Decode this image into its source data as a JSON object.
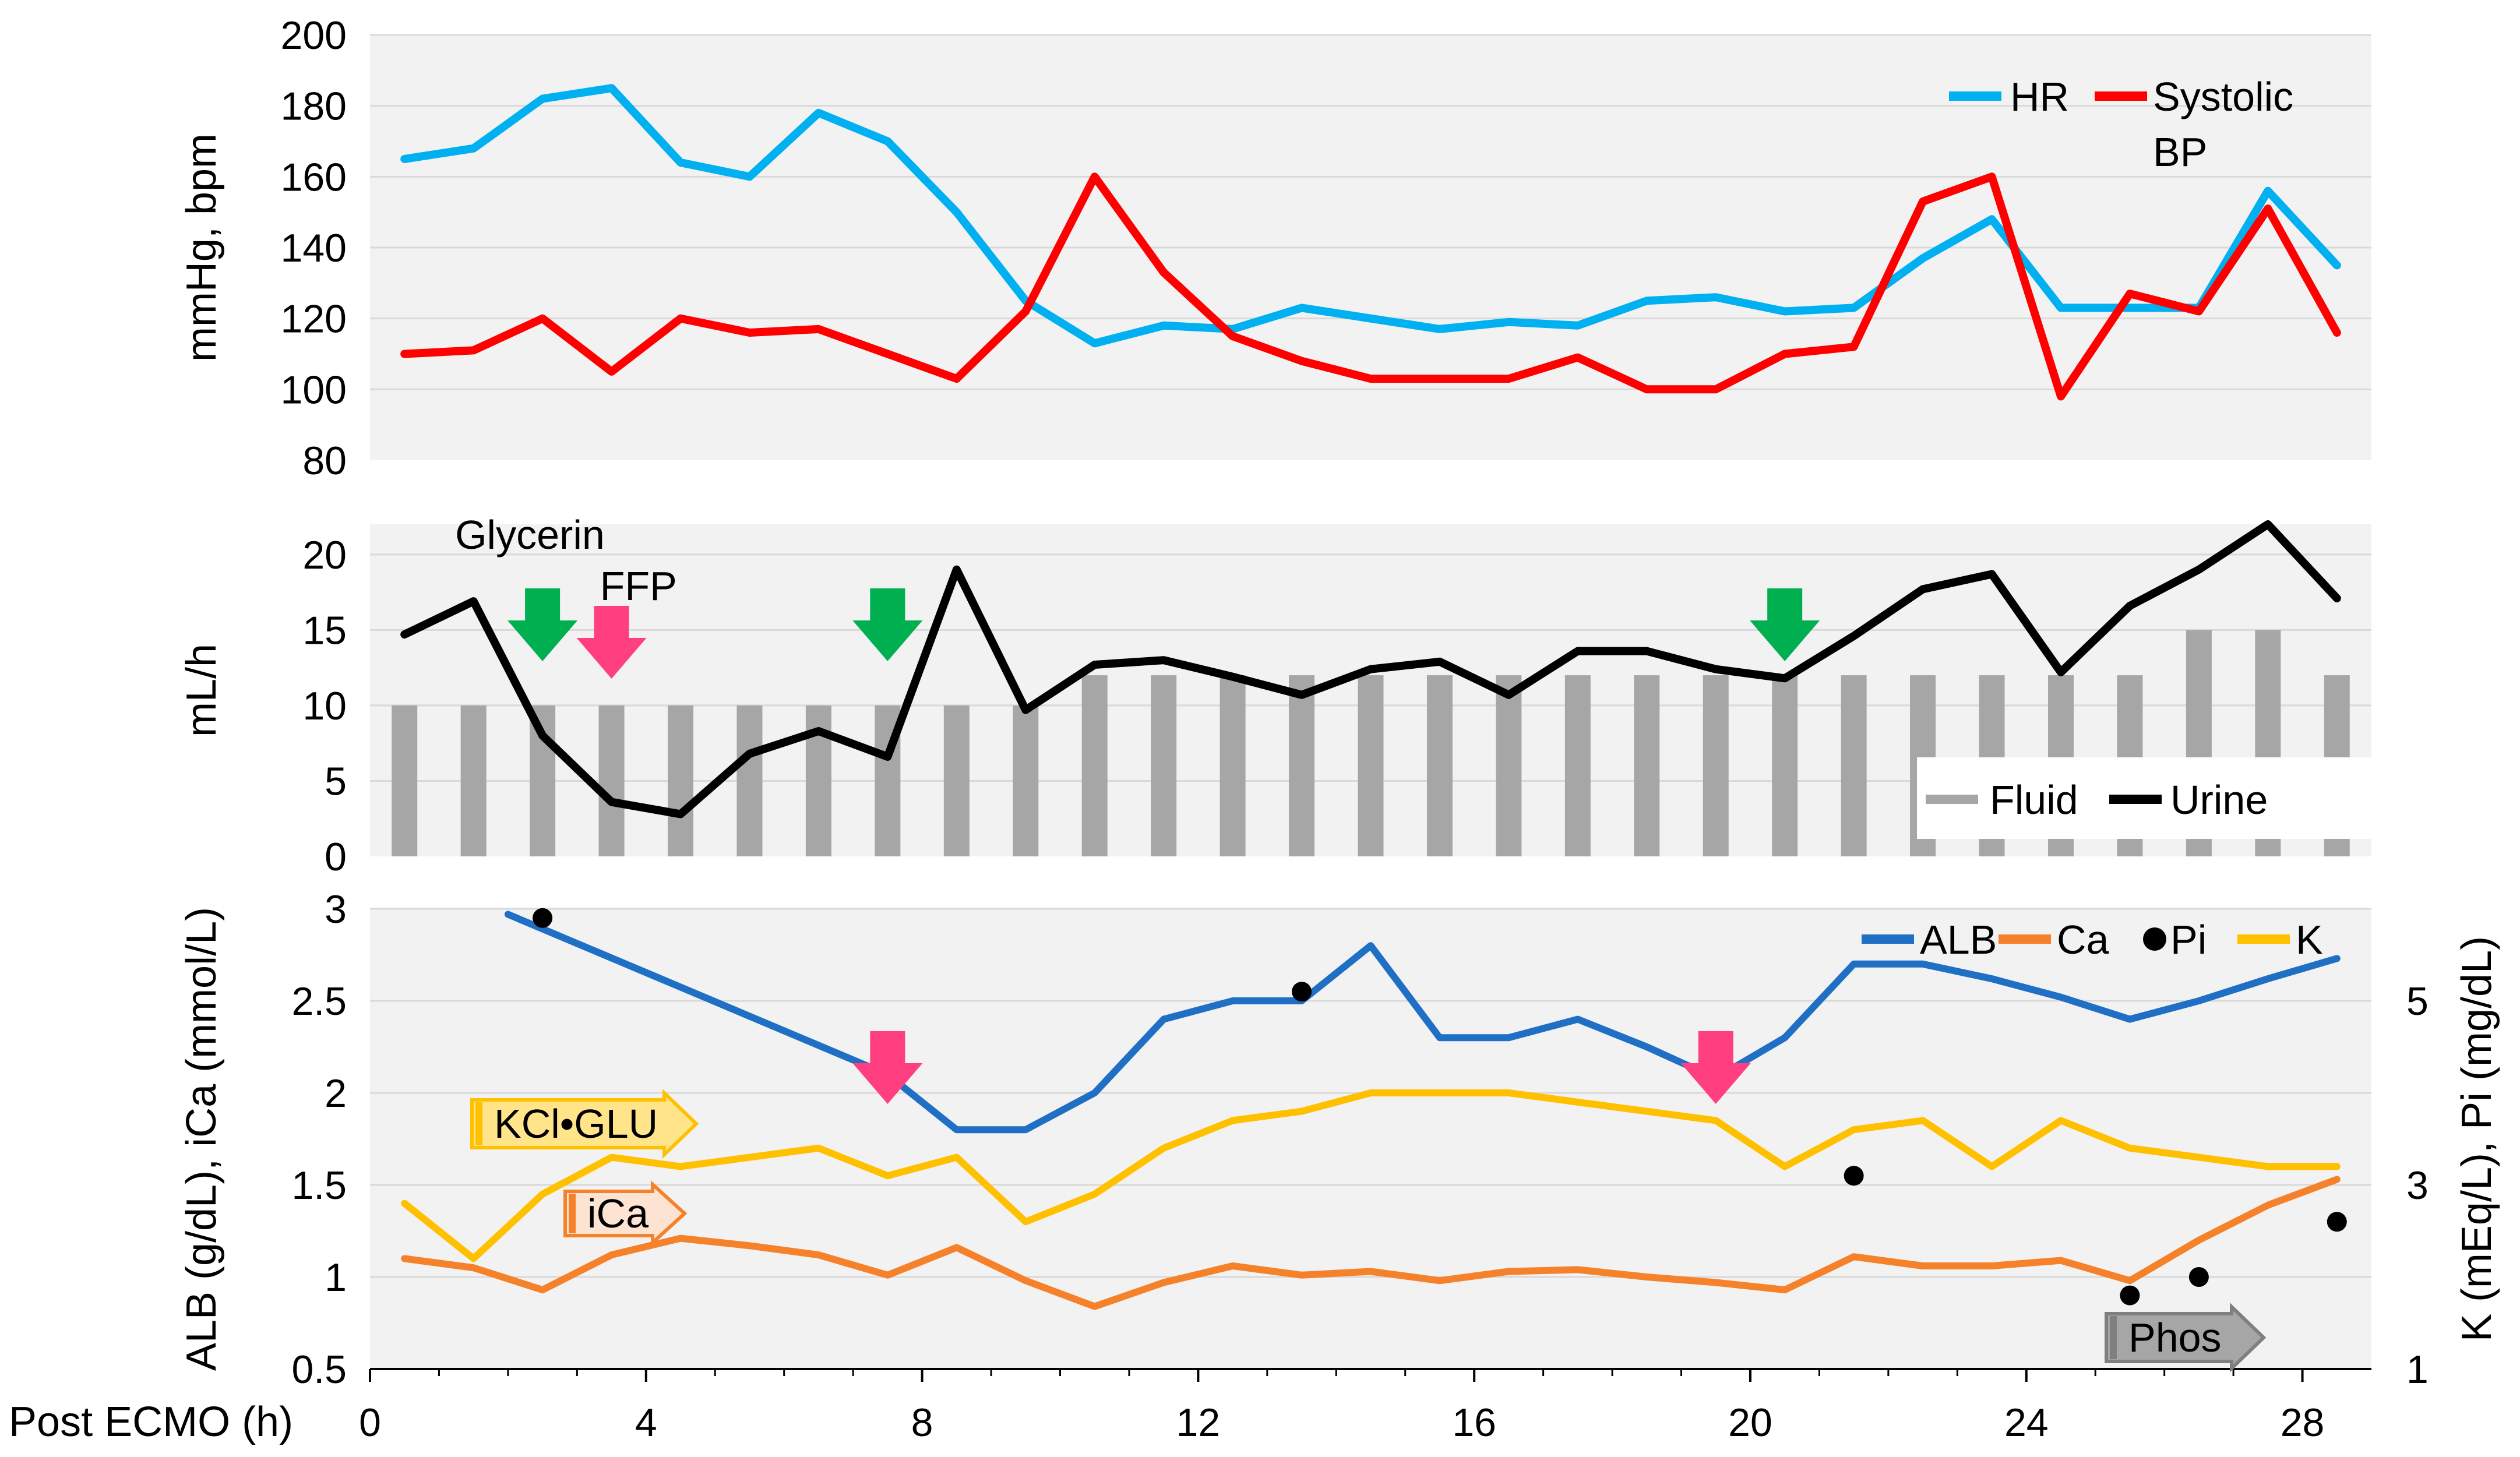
{
  "chart_data": [
    {
      "id": "vitals",
      "type": "line",
      "ylabel": "mmHg, bpm",
      "ylim": [
        80,
        200
      ],
      "yticks": [
        80,
        100,
        120,
        140,
        160,
        180,
        200
      ],
      "x": [
        0.5,
        1.5,
        2.5,
        3.5,
        4.5,
        5.5,
        6.5,
        7.5,
        8.5,
        9.5,
        10.5,
        11.5,
        12.5,
        13.5,
        14.5,
        15.5,
        16.5,
        17.5,
        18.5,
        19.5,
        20.5,
        21.5,
        22.5,
        23.5,
        24.5,
        25.5,
        26.5,
        27.5,
        28.5
      ],
      "series": [
        {
          "name": "HR",
          "color": "#00b0f0",
          "values": [
            165,
            168,
            182,
            185,
            164,
            160,
            178,
            170,
            150,
            125,
            113,
            118,
            117,
            123,
            120,
            117,
            119,
            118,
            125,
            126,
            122,
            123,
            137,
            148,
            123,
            123,
            123,
            156,
            135
          ]
        },
        {
          "name": "Systolic BP",
          "color": "#ff0000",
          "values": [
            110,
            111,
            120,
            105,
            120,
            116,
            117,
            110,
            103,
            122,
            160,
            133,
            115,
            108,
            103,
            103,
            103,
            109,
            100,
            100,
            110,
            112,
            153,
            160,
            98,
            127,
            122,
            151,
            116
          ]
        }
      ],
      "legend": [
        {
          "label": "HR",
          "color": "#00b0f0"
        },
        {
          "label_lines": [
            "Systolic",
            "BP"
          ],
          "color": "#ff0000"
        }
      ]
    },
    {
      "id": "fluid_urine",
      "type": "bar+line",
      "ylabel": "mL/h",
      "ylim": [
        0,
        22
      ],
      "yticks": [
        0,
        5,
        10,
        15,
        20
      ],
      "x": [
        0.5,
        1.5,
        2.5,
        3.5,
        4.5,
        5.5,
        6.5,
        7.5,
        8.5,
        9.5,
        10.5,
        11.5,
        12.5,
        13.5,
        14.5,
        15.5,
        16.5,
        17.5,
        18.5,
        19.5,
        20.5,
        21.5,
        22.5,
        23.5,
        24.5,
        25.5,
        26.5,
        27.5,
        28.5
      ],
      "series": [
        {
          "name": "Fluid",
          "kind": "bar",
          "color": "#a6a6a6",
          "values": [
            10,
            10,
            10,
            10,
            10,
            10,
            10,
            10,
            10,
            10,
            12,
            12,
            12,
            12,
            12,
            12,
            12,
            12,
            12,
            12,
            12,
            12,
            12,
            12,
            12,
            12,
            15,
            15,
            12
          ]
        },
        {
          "name": "Urine",
          "kind": "line",
          "color": "#000000",
          "values": [
            14.7,
            16.9,
            8,
            3.6,
            2.8,
            6.8,
            8.3,
            6.6,
            19,
            9.7,
            12.7,
            13,
            11.9,
            10.7,
            12.4,
            12.9,
            10.7,
            13.6,
            13.6,
            12.4,
            11.8,
            14.6,
            17.7,
            18.7,
            12.2,
            16.6,
            19,
            22,
            17.1
          ]
        }
      ],
      "legend": [
        {
          "label": "Fluid",
          "color": "#a6a6a6"
        },
        {
          "label": "Urine",
          "color": "#000000"
        }
      ],
      "annotations": [
        {
          "text": "Glycerin",
          "x": 2.5
        },
        {
          "text": "FFP",
          "x": 3.5
        }
      ],
      "arrows": [
        {
          "type": "Glycerin",
          "color": "#00b050",
          "x": 2.5
        },
        {
          "type": "FFP",
          "color": "#ff3f7f",
          "x": 3.5
        },
        {
          "type": "Glycerin",
          "color": "#00b050",
          "x": 7.5
        },
        {
          "type": "Glycerin",
          "color": "#00b050",
          "x": 20.5
        }
      ]
    },
    {
      "id": "labs",
      "type": "line+scatter",
      "ylabel": "ALB (g/dL), iCa (mmol/L)",
      "ylabel_right": "K (mEq/L), Pi (mg/dL)",
      "xlabel": "Post ECMO (h)",
      "xlim": [
        0,
        29
      ],
      "xticks": [
        0,
        4,
        8,
        12,
        16,
        20,
        24,
        28
      ],
      "ylim": [
        0.5,
        3
      ],
      "yticks": [
        "0.5",
        "1",
        "1.5",
        "2",
        "2.5",
        "3"
      ],
      "ylim_right": [
        1,
        6
      ],
      "yticks_right": [
        1,
        3,
        5
      ],
      "series": [
        {
          "name": "ALB",
          "color": "#1f6fc5",
          "x": [
            2,
            7.5,
            8.5,
            9.5,
            10.5,
            11.5,
            12.5,
            13.5,
            14.5,
            15.5,
            16.5,
            17.5,
            18.5,
            19.5,
            20.5,
            21.5,
            22.5,
            23.5,
            24.5,
            25.5,
            26.5,
            27.5,
            28.5
          ],
          "values": [
            2.97,
            2.1,
            1.8,
            1.8,
            2.0,
            2.4,
            2.5,
            2.5,
            2.8,
            2.3,
            2.3,
            2.4,
            2.25,
            2.08,
            2.3,
            2.7,
            2.7,
            2.62,
            2.52,
            2.4,
            2.5,
            2.62,
            2.73
          ]
        },
        {
          "name": "Ca",
          "axis": "left",
          "color": "#f5822a",
          "x": [
            0.5,
            1.5,
            2.5,
            3.5,
            4.5,
            5.5,
            6.5,
            7.5,
            8.5,
            9.5,
            10.5,
            11.5,
            12.5,
            13.5,
            14.5,
            15.5,
            16.5,
            17.5,
            18.5,
            19.5,
            20.5,
            21.5,
            22.5,
            23.5,
            24.5,
            25.5,
            26.5,
            27.5,
            28.5
          ],
          "values": [
            1.1,
            1.05,
            0.93,
            1.12,
            1.21,
            1.17,
            1.12,
            1.01,
            1.16,
            0.98,
            0.84,
            0.97,
            1.06,
            1.01,
            1.03,
            0.98,
            1.03,
            1.04,
            1.0,
            0.97,
            0.93,
            1.11,
            1.06,
            1.06,
            1.09,
            0.98,
            1.2,
            1.39,
            1.53
          ]
        },
        {
          "name": "Pi",
          "axis": "right",
          "kind": "scatter",
          "color": "#000000",
          "x": [
            2.5,
            13.5,
            21.5,
            25.5,
            26.5,
            28.5
          ],
          "values": [
            5.9,
            5.1,
            3.1,
            1.8,
            2.0,
            2.6
          ]
        },
        {
          "name": "K",
          "axis": "right",
          "color": "#ffc000",
          "x": [
            0.5,
            1.5,
            2.5,
            3.5,
            4.5,
            5.5,
            6.5,
            7.5,
            8.5,
            9.5,
            10.5,
            11.5,
            12.5,
            13.5,
            14.5,
            15.5,
            16.5,
            17.5,
            18.5,
            19.5,
            20.5,
            21.5,
            22.5,
            23.5,
            24.5,
            25.5,
            26.5,
            27.5,
            28.5
          ],
          "values": [
            2.8,
            2.2,
            2.9,
            3.3,
            3.2,
            3.3,
            3.4,
            3.1,
            3.3,
            2.6,
            2.9,
            3.4,
            3.7,
            3.8,
            4.0,
            4.0,
            4.0,
            3.9,
            3.8,
            3.7,
            3.2,
            3.6,
            3.7,
            3.2,
            3.7,
            3.4,
            3.3,
            3.2,
            3.2
          ]
        }
      ],
      "legend": [
        {
          "label": "ALB",
          "color": "#1f6fc5"
        },
        {
          "label": "Ca",
          "color": "#f5822a"
        },
        {
          "label": "Pi",
          "color": "#000000"
        },
        {
          "label": "K",
          "color": "#ffc000"
        }
      ],
      "arrows": [
        {
          "type": "FFP",
          "color": "#ff3f7f",
          "x": 7.5
        },
        {
          "type": "FFP",
          "color": "#ff3f7f",
          "x": 19.5
        }
      ],
      "tags": [
        {
          "text": "KCl•GLU",
          "color": "#ffc000",
          "fill": "#ffe48a"
        },
        {
          "text": "iCa",
          "color": "#f5822a",
          "fill": "#fde4d2"
        },
        {
          "text": "Phos",
          "color": "#7f7f7f",
          "fill": "#a6a6a6"
        }
      ]
    }
  ]
}
